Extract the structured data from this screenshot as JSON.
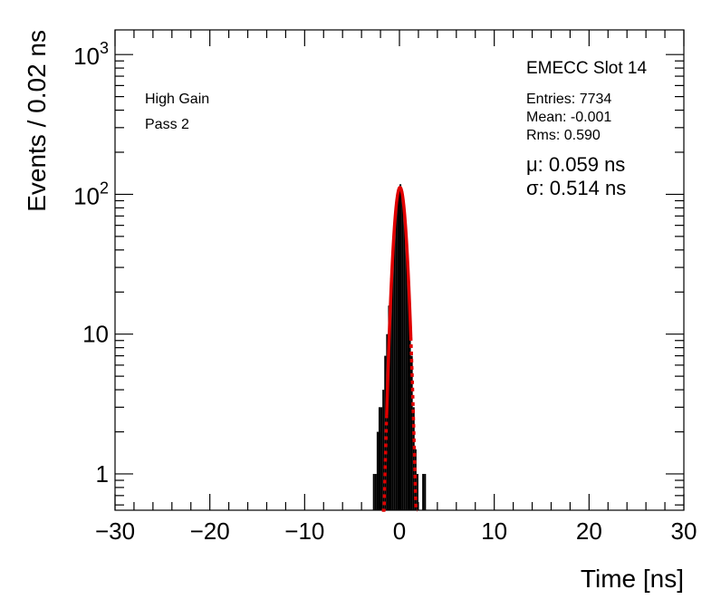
{
  "chart_data": {
    "type": "histogram",
    "xlabel": "Time [ns]",
    "ylabel": "Events / 0.02 ns",
    "xlim": [
      -30,
      30
    ],
    "ylim": [
      0.55,
      1500
    ],
    "yscale": "log",
    "x_ticks": [
      -30,
      -20,
      -10,
      0,
      10,
      20,
      30
    ],
    "x_tick_labels": [
      "−30",
      "−20",
      "−10",
      "0",
      "10",
      "20",
      "30"
    ],
    "y_tick_labels": [
      {
        "value": 1,
        "base": "1",
        "exp": ""
      },
      {
        "value": 10,
        "base": "10",
        "exp": ""
      },
      {
        "value": 100,
        "base": "10",
        "exp": "2"
      },
      {
        "value": 1000,
        "base": "10",
        "exp": "3"
      }
    ],
    "annotations": {
      "left": [
        "High Gain",
        "Pass 2"
      ],
      "title": "EMECC Slot 14",
      "stats": [
        "Entries: 7734",
        "Mean: -0.001",
        "Rms: 0.590"
      ],
      "fit": [
        "μ: 0.059 ns",
        "σ: 0.514 ns"
      ]
    },
    "histogram": {
      "color": "#000000",
      "bins": [
        [
          -2.8,
          -2.6,
          1
        ],
        [
          -2.6,
          -2.4,
          1
        ],
        [
          -2.4,
          -2.2,
          2
        ],
        [
          -2.2,
          -2.0,
          3
        ],
        [
          -2.0,
          -1.8,
          3
        ],
        [
          -1.8,
          -1.6,
          4
        ],
        [
          -1.6,
          -1.4,
          7
        ],
        [
          -1.4,
          -1.2,
          10
        ],
        [
          -1.2,
          -1.0,
          16
        ],
        [
          -1.0,
          -0.8,
          25
        ],
        [
          -0.8,
          -0.6,
          42
        ],
        [
          -0.6,
          -0.4,
          65
        ],
        [
          -0.4,
          -0.2,
          90
        ],
        [
          -0.2,
          0.0,
          110
        ],
        [
          0.0,
          0.2,
          118
        ],
        [
          0.2,
          0.4,
          105
        ],
        [
          0.4,
          0.6,
          80
        ],
        [
          0.6,
          0.8,
          55
        ],
        [
          0.8,
          1.0,
          30
        ],
        [
          1.0,
          1.2,
          15
        ],
        [
          1.2,
          1.4,
          7
        ],
        [
          1.4,
          1.6,
          3
        ],
        [
          1.6,
          1.8,
          1.5
        ],
        [
          1.8,
          2.0,
          1
        ],
        [
          2.4,
          2.6,
          1
        ],
        [
          2.6,
          2.8,
          1
        ]
      ]
    },
    "fit": {
      "function": "gaussian",
      "color": "#e00000",
      "amplitude": 112,
      "mean": 0.059,
      "sigma": 0.514,
      "solid_range": [
        -1.35,
        1.2
      ],
      "dotted_range": [
        -1.85,
        1.85
      ]
    }
  }
}
